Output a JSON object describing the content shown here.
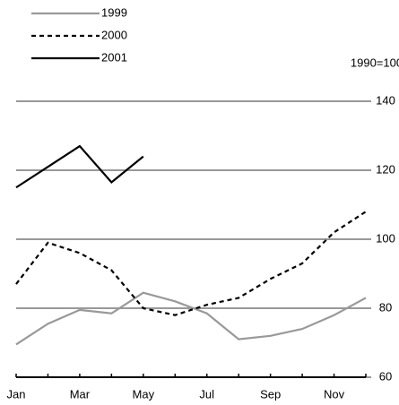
{
  "chart_data": {
    "type": "line",
    "unit_label": "1990=100",
    "categories": [
      "Jan",
      null,
      "Mar",
      null,
      "May",
      null,
      "Jul",
      null,
      "Sep",
      null,
      "Nov",
      null
    ],
    "series": [
      {
        "name": "1999",
        "color": "#999999",
        "dash": "solid",
        "values": [
          69.5,
          75.5,
          79.5,
          78.5,
          84.5,
          82,
          78.5,
          71,
          72,
          74,
          78,
          83
        ]
      },
      {
        "name": "2000",
        "color": "#000000",
        "dash": "dashed",
        "values": [
          87,
          99,
          96,
          91,
          80,
          78,
          81,
          83,
          88.5,
          93,
          102,
          108
        ]
      },
      {
        "name": "2001",
        "color": "#000000",
        "dash": "solid",
        "values": [
          115,
          121,
          127,
          116.5,
          124,
          null,
          null,
          null,
          null,
          null,
          null,
          null
        ]
      }
    ],
    "ylim": [
      60,
      140
    ],
    "yticks": [
      60,
      80,
      100,
      120,
      140
    ],
    "grid": true,
    "grid_color": "#999999"
  }
}
